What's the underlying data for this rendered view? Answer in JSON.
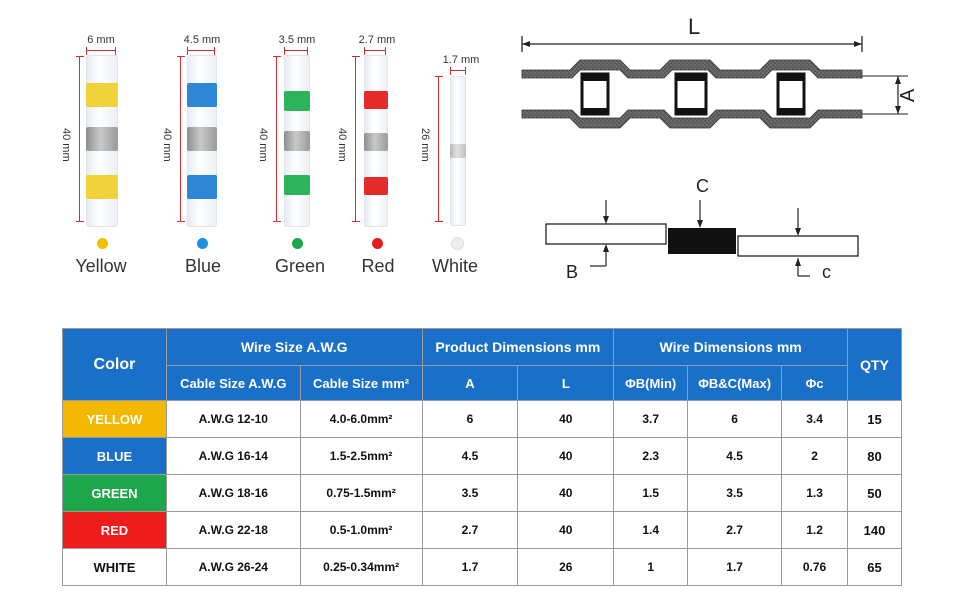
{
  "connectors": [
    {
      "width_label": "6 mm",
      "length_label": "40 mm",
      "name": "Yellow",
      "color": "#f2c100",
      "band": "#f0d23a"
    },
    {
      "width_label": "4.5 mm",
      "length_label": "40 mm",
      "name": "Blue",
      "color": "#1e8fe0",
      "band": "#2e86d6"
    },
    {
      "width_label": "3.5 mm",
      "length_label": "40 mm",
      "name": "Green",
      "color": "#1ea64a",
      "band": "#2db45a"
    },
    {
      "width_label": "2.7 mm",
      "length_label": "40 mm",
      "name": "Red",
      "color": "#e21b1b",
      "band": "#e42a2a"
    },
    {
      "width_label": "1.7 mm",
      "length_label": "26 mm",
      "name": "White",
      "color": "#eeeeee",
      "band": "#ffffff"
    }
  ],
  "schematic": {
    "label_L": "L",
    "label_A": "A",
    "label_B": "B",
    "label_C": "C",
    "label_c": "c"
  },
  "table": {
    "header_color": "Color",
    "header_wire_awg": "Wire Size A.W.G",
    "header_product": "Product Dimensions mm",
    "header_wire_dim": "Wire Dimensions mm",
    "header_qty": "QTY",
    "sub_cable_awg": "Cable Size A.W.G",
    "sub_cable_mm": "Cable Size mm²",
    "sub_a": "A",
    "sub_l": "L",
    "sub_bmin": "ΦB(Min)",
    "sub_bcmax": "ΦB&C(Max)",
    "sub_c": "Φc",
    "rows": [
      {
        "color": "YELLOW",
        "bg": "#f5b800",
        "fg": "#ffffff",
        "awg": "A.W.G 12-10",
        "mm2": "4.0-6.0mm²",
        "a": "6",
        "l": "40",
        "bmin": "3.7",
        "bcmax": "6",
        "c": "3.4",
        "qty": "15"
      },
      {
        "color": "BLUE",
        "bg": "#1a6fc9",
        "fg": "#ffffff",
        "awg": "A.W.G 16-14",
        "mm2": "1.5-2.5mm²",
        "a": "4.5",
        "l": "40",
        "bmin": "2.3",
        "bcmax": "4.5",
        "c": "2",
        "qty": "80"
      },
      {
        "color": "GREEN",
        "bg": "#1ea64a",
        "fg": "#ffffff",
        "awg": "A.W.G 18-16",
        "mm2": "0.75-1.5mm²",
        "a": "3.5",
        "l": "40",
        "bmin": "1.5",
        "bcmax": "3.5",
        "c": "1.3",
        "qty": "50"
      },
      {
        "color": "RED",
        "bg": "#ee1c1c",
        "fg": "#ffffff",
        "awg": "A.W.G 22-18",
        "mm2": "0.5-1.0mm²",
        "a": "2.7",
        "l": "40",
        "bmin": "1.4",
        "bcmax": "2.7",
        "c": "1.2",
        "qty": "140"
      },
      {
        "color": "WHITE",
        "bg": "#ffffff",
        "fg": "#111111",
        "awg": "A.W.G 26-24",
        "mm2": "0.25-0.34mm²",
        "a": "1.7",
        "l": "26",
        "bmin": "1",
        "bcmax": "1.7",
        "c": "0.76",
        "qty": "65"
      }
    ]
  }
}
